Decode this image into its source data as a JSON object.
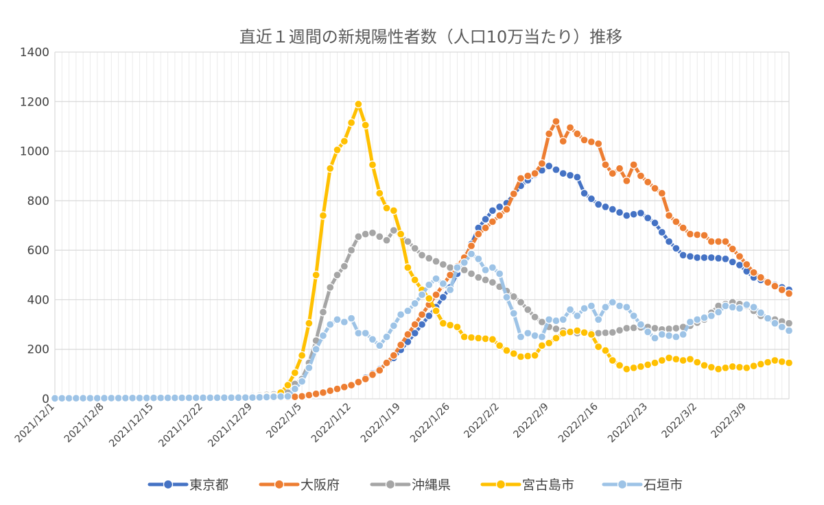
{
  "chart_data": {
    "type": "line",
    "title": "直近１週間の新規陽性者数（人口10万当たり）推移",
    "xlabel": "",
    "ylabel": "",
    "ylim": [
      0,
      1400
    ],
    "yticks": [
      0,
      200,
      400,
      600,
      800,
      1000,
      1200,
      1400
    ],
    "grid": true,
    "legend_position": "bottom",
    "x_start": "2021/12/1",
    "x_end": "2022/3/15",
    "xtick_labels": [
      "2021/12/1",
      "2021/12/8",
      "2021/12/15",
      "2021/12/22",
      "2021/12/29",
      "2022/1/5",
      "2022/1/12",
      "2022/1/19",
      "2022/1/26",
      "2022/2/2",
      "2022/2/9",
      "2022/2/16",
      "2022/2/23",
      "2022/3/2",
      "2022/3/9"
    ],
    "series": [
      {
        "name": "東京都",
        "color": "#4472C4",
        "points": [
          [
            "2021/12/1",
            2
          ],
          [
            "2021/12/29",
            3
          ],
          [
            "2022/1/3",
            5
          ],
          [
            "2022/1/5",
            8
          ],
          [
            "2022/1/8",
            22
          ],
          [
            "2022/1/10",
            40
          ],
          [
            "2022/1/12",
            55
          ],
          [
            "2022/1/14",
            85
          ],
          [
            "2022/1/16",
            120
          ],
          [
            "2022/1/18",
            165
          ],
          [
            "2022/1/20",
            230
          ],
          [
            "2022/1/22",
            300
          ],
          [
            "2022/1/24",
            370
          ],
          [
            "2022/1/26",
            450
          ],
          [
            "2022/1/28",
            560
          ],
          [
            "2022/1/30",
            690
          ],
          [
            "2022/2/1",
            760
          ],
          [
            "2022/2/3",
            790
          ],
          [
            "2022/2/5",
            860
          ],
          [
            "2022/2/7",
            905
          ],
          [
            "2022/2/9",
            940
          ],
          [
            "2022/2/11",
            910
          ],
          [
            "2022/2/13",
            895
          ],
          [
            "2022/2/14",
            830
          ],
          [
            "2022/2/16",
            785
          ],
          [
            "2022/2/18",
            765
          ],
          [
            "2022/2/20",
            740
          ],
          [
            "2022/2/22",
            750
          ],
          [
            "2022/2/24",
            710
          ],
          [
            "2022/2/26",
            635
          ],
          [
            "2022/2/28",
            580
          ],
          [
            "2022/3/2",
            570
          ],
          [
            "2022/3/4",
            570
          ],
          [
            "2022/3/6",
            565
          ],
          [
            "2022/3/8",
            540
          ],
          [
            "2022/3/10",
            490
          ],
          [
            "2022/3/12",
            470
          ],
          [
            "2022/3/15",
            440
          ]
        ]
      },
      {
        "name": "大阪府",
        "color": "#ED7D31",
        "points": [
          [
            "2021/12/1",
            2
          ],
          [
            "2021/12/29",
            3
          ],
          [
            "2022/1/3",
            6
          ],
          [
            "2022/1/5",
            10
          ],
          [
            "2022/1/8",
            25
          ],
          [
            "2022/1/10",
            40
          ],
          [
            "2022/1/12",
            55
          ],
          [
            "2022/1/14",
            80
          ],
          [
            "2022/1/16",
            115
          ],
          [
            "2022/1/18",
            175
          ],
          [
            "2022/1/20",
            260
          ],
          [
            "2022/1/22",
            340
          ],
          [
            "2022/1/24",
            420
          ],
          [
            "2022/1/26",
            500
          ],
          [
            "2022/1/28",
            570
          ],
          [
            "2022/1/30",
            665
          ],
          [
            "2022/2/1",
            715
          ],
          [
            "2022/2/3",
            765
          ],
          [
            "2022/2/5",
            890
          ],
          [
            "2022/2/7",
            910
          ],
          [
            "2022/2/8",
            950
          ],
          [
            "2022/2/9",
            1070
          ],
          [
            "2022/2/10",
            1120
          ],
          [
            "2022/2/11",
            1040
          ],
          [
            "2022/2/12",
            1095
          ],
          [
            "2022/2/14",
            1045
          ],
          [
            "2022/2/16",
            1030
          ],
          [
            "2022/2/17",
            945
          ],
          [
            "2022/2/18",
            910
          ],
          [
            "2022/2/19",
            930
          ],
          [
            "2022/2/20",
            880
          ],
          [
            "2022/2/21",
            945
          ],
          [
            "2022/2/22",
            900
          ],
          [
            "2022/2/24",
            850
          ],
          [
            "2022/2/25",
            830
          ],
          [
            "2022/2/26",
            740
          ],
          [
            "2022/2/28",
            690
          ],
          [
            "2022/3/1",
            665
          ],
          [
            "2022/3/3",
            660
          ],
          [
            "2022/3/4",
            635
          ],
          [
            "2022/3/6",
            635
          ],
          [
            "2022/3/8",
            575
          ],
          [
            "2022/3/10",
            510
          ],
          [
            "2022/3/12",
            470
          ],
          [
            "2022/3/15",
            425
          ]
        ]
      },
      {
        "name": "沖縄県",
        "color": "#A5A5A5",
        "points": [
          [
            "2021/12/1",
            2
          ],
          [
            "2021/12/20",
            3
          ],
          [
            "2021/12/29",
            12
          ],
          [
            "2022/1/1",
            18
          ],
          [
            "2022/1/3",
            25
          ],
          [
            "2022/1/4",
            60
          ],
          [
            "2022/1/5",
            80
          ],
          [
            "2022/1/6",
            145
          ],
          [
            "2022/1/7",
            235
          ],
          [
            "2022/1/8",
            350
          ],
          [
            "2022/1/9",
            450
          ],
          [
            "2022/1/10",
            500
          ],
          [
            "2022/1/11",
            535
          ],
          [
            "2022/1/12",
            600
          ],
          [
            "2022/1/13",
            655
          ],
          [
            "2022/1/14",
            665
          ],
          [
            "2022/1/15",
            670
          ],
          [
            "2022/1/16",
            655
          ],
          [
            "2022/1/17",
            640
          ],
          [
            "2022/1/18",
            680
          ],
          [
            "2022/1/19",
            660
          ],
          [
            "2022/1/20",
            635
          ],
          [
            "2022/1/22",
            580
          ],
          [
            "2022/1/24",
            555
          ],
          [
            "2022/1/26",
            530
          ],
          [
            "2022/1/28",
            520
          ],
          [
            "2022/1/30",
            490
          ],
          [
            "2022/2/1",
            470
          ],
          [
            "2022/2/3",
            435
          ],
          [
            "2022/2/5",
            390
          ],
          [
            "2022/2/7",
            330
          ],
          [
            "2022/2/9",
            290
          ],
          [
            "2022/2/11",
            275
          ],
          [
            "2022/2/13",
            265
          ],
          [
            "2022/2/16",
            265
          ],
          [
            "2022/2/18",
            268
          ],
          [
            "2022/2/20",
            285
          ],
          [
            "2022/2/23",
            290
          ],
          [
            "2022/2/25",
            280
          ],
          [
            "2022/2/27",
            285
          ],
          [
            "2022/3/1",
            295
          ],
          [
            "2022/3/3",
            320
          ],
          [
            "2022/3/5",
            375
          ],
          [
            "2022/3/7",
            390
          ],
          [
            "2022/3/9",
            375
          ],
          [
            "2022/3/11",
            335
          ],
          [
            "2022/3/13",
            320
          ],
          [
            "2022/3/15",
            305
          ]
        ]
      },
      {
        "name": "宮古島市",
        "color": "#FFC000",
        "points": [
          [
            "2021/12/1",
            2
          ],
          [
            "2021/12/29",
            8
          ],
          [
            "2022/1/1",
            12
          ],
          [
            "2022/1/2",
            25
          ],
          [
            "2022/1/3",
            55
          ],
          [
            "2022/1/4",
            105
          ],
          [
            "2022/1/5",
            175
          ],
          [
            "2022/1/6",
            305
          ],
          [
            "2022/1/7",
            500
          ],
          [
            "2022/1/8",
            740
          ],
          [
            "2022/1/9",
            930
          ],
          [
            "2022/1/10",
            1005
          ],
          [
            "2022/1/11",
            1040
          ],
          [
            "2022/1/12",
            1115
          ],
          [
            "2022/1/13",
            1190
          ],
          [
            "2022/1/14",
            1105
          ],
          [
            "2022/1/15",
            945
          ],
          [
            "2022/1/16",
            830
          ],
          [
            "2022/1/17",
            770
          ],
          [
            "2022/1/18",
            760
          ],
          [
            "2022/1/19",
            665
          ],
          [
            "2022/1/20",
            530
          ],
          [
            "2022/1/21",
            480
          ],
          [
            "2022/1/22",
            440
          ],
          [
            "2022/1/23",
            405
          ],
          [
            "2022/1/24",
            355
          ],
          [
            "2022/1/25",
            305
          ],
          [
            "2022/1/27",
            290
          ],
          [
            "2022/1/28",
            250
          ],
          [
            "2022/2/1",
            240
          ],
          [
            "2022/2/2",
            215
          ],
          [
            "2022/2/3",
            195
          ],
          [
            "2022/2/5",
            170
          ],
          [
            "2022/2/7",
            175
          ],
          [
            "2022/2/8",
            215
          ],
          [
            "2022/2/9",
            225
          ],
          [
            "2022/2/11",
            265
          ],
          [
            "2022/2/13",
            275
          ],
          [
            "2022/2/15",
            260
          ],
          [
            "2022/2/16",
            210
          ],
          [
            "2022/2/17",
            195
          ],
          [
            "2022/2/18",
            155
          ],
          [
            "2022/2/19",
            135
          ],
          [
            "2022/2/20",
            120
          ],
          [
            "2022/2/22",
            130
          ],
          [
            "2022/2/24",
            145
          ],
          [
            "2022/2/26",
            165
          ],
          [
            "2022/2/28",
            155
          ],
          [
            "2022/3/1",
            160
          ],
          [
            "2022/3/3",
            135
          ],
          [
            "2022/3/5",
            120
          ],
          [
            "2022/3/7",
            130
          ],
          [
            "2022/3/9",
            125
          ],
          [
            "2022/3/11",
            140
          ],
          [
            "2022/3/13",
            155
          ],
          [
            "2022/3/15",
            145
          ]
        ]
      },
      {
        "name": "石垣市",
        "color": "#9DC3E6",
        "points": [
          [
            "2021/12/1",
            2
          ],
          [
            "2021/12/29",
            5
          ],
          [
            "2022/1/3",
            10
          ],
          [
            "2022/1/4",
            40
          ],
          [
            "2022/1/5",
            70
          ],
          [
            "2022/1/6",
            125
          ],
          [
            "2022/1/7",
            200
          ],
          [
            "2022/1/8",
            255
          ],
          [
            "2022/1/9",
            300
          ],
          [
            "2022/1/10",
            320
          ],
          [
            "2022/1/11",
            310
          ],
          [
            "2022/1/12",
            325
          ],
          [
            "2022/1/13",
            265
          ],
          [
            "2022/1/14",
            265
          ],
          [
            "2022/1/15",
            240
          ],
          [
            "2022/1/16",
            215
          ],
          [
            "2022/1/17",
            250
          ],
          [
            "2022/1/18",
            295
          ],
          [
            "2022/1/19",
            340
          ],
          [
            "2022/1/20",
            355
          ],
          [
            "2022/1/21",
            385
          ],
          [
            "2022/1/22",
            420
          ],
          [
            "2022/1/23",
            460
          ],
          [
            "2022/1/24",
            485
          ],
          [
            "2022/1/25",
            465
          ],
          [
            "2022/1/26",
            440
          ],
          [
            "2022/1/27",
            530
          ],
          [
            "2022/1/28",
            550
          ],
          [
            "2022/1/29",
            585
          ],
          [
            "2022/1/30",
            565
          ],
          [
            "2022/1/31",
            520
          ],
          [
            "2022/2/1",
            530
          ],
          [
            "2022/2/2",
            505
          ],
          [
            "2022/2/3",
            410
          ],
          [
            "2022/2/4",
            345
          ],
          [
            "2022/2/5",
            250
          ],
          [
            "2022/2/6",
            265
          ],
          [
            "2022/2/7",
            255
          ],
          [
            "2022/2/8",
            250
          ],
          [
            "2022/2/9",
            320
          ],
          [
            "2022/2/10",
            315
          ],
          [
            "2022/2/11",
            320
          ],
          [
            "2022/2/12",
            360
          ],
          [
            "2022/2/13",
            335
          ],
          [
            "2022/2/14",
            365
          ],
          [
            "2022/2/15",
            375
          ],
          [
            "2022/2/16",
            320
          ],
          [
            "2022/2/17",
            370
          ],
          [
            "2022/2/18",
            390
          ],
          [
            "2022/2/19",
            375
          ],
          [
            "2022/2/20",
            370
          ],
          [
            "2022/2/21",
            335
          ],
          [
            "2022/2/22",
            300
          ],
          [
            "2022/2/23",
            270
          ],
          [
            "2022/2/24",
            245
          ],
          [
            "2022/2/25",
            260
          ],
          [
            "2022/2/26",
            255
          ],
          [
            "2022/2/27",
            250
          ],
          [
            "2022/2/28",
            260
          ],
          [
            "2022/3/1",
            310
          ],
          [
            "2022/3/2",
            320
          ],
          [
            "2022/3/4",
            335
          ],
          [
            "2022/3/5",
            350
          ],
          [
            "2022/3/6",
            375
          ],
          [
            "2022/3/7",
            370
          ],
          [
            "2022/3/8",
            365
          ],
          [
            "2022/3/9",
            380
          ],
          [
            "2022/3/10",
            370
          ],
          [
            "2022/3/12",
            325
          ],
          [
            "2022/3/13",
            305
          ],
          [
            "2022/3/15",
            275
          ]
        ]
      }
    ]
  }
}
